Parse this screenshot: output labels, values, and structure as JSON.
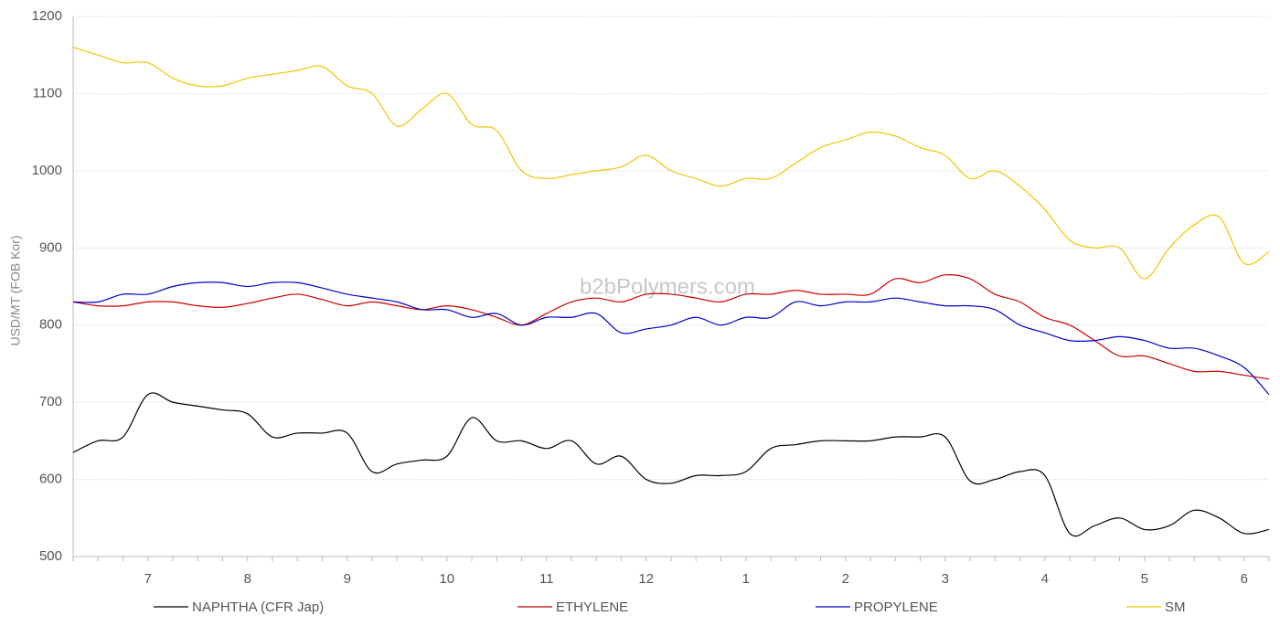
{
  "chart_data": {
    "type": "line",
    "y_label": "USD/MT (FOB Kor)",
    "watermark": "b2bPolymers.com",
    "categories": [
      null,
      null,
      null,
      "7",
      null,
      null,
      null,
      "8",
      null,
      null,
      null,
      "9",
      null,
      null,
      null,
      "10",
      null,
      null,
      null,
      "11",
      null,
      null,
      null,
      "12",
      null,
      null,
      null,
      "1",
      null,
      null,
      null,
      "2",
      null,
      null,
      null,
      "3",
      null,
      null,
      null,
      "4",
      null,
      null,
      null,
      "5",
      null,
      null,
      null,
      "6",
      null
    ],
    "ylim": [
      500,
      1200
    ],
    "yticks": [
      500,
      600,
      700,
      800,
      900,
      1000,
      1100,
      1200
    ],
    "grid": true,
    "legend": "bottom",
    "series": [
      {
        "name": "NAPHTHA (CFR Jap)",
        "color": "#000000",
        "values": [
          635,
          650,
          655,
          710,
          700,
          695,
          690,
          685,
          655,
          660,
          660,
          660,
          610,
          620,
          625,
          630,
          680,
          650,
          650,
          640,
          650,
          620,
          630,
          600,
          595,
          605,
          605,
          610,
          640,
          645,
          650,
          650,
          650,
          655,
          655,
          655,
          598,
          600,
          610,
          605,
          530,
          540,
          550,
          535,
          540,
          560,
          550,
          530,
          535
        ]
      },
      {
        "name": "ETHYLENE",
        "color": "#cc0000",
        "values": [
          830,
          825,
          825,
          830,
          830,
          825,
          823,
          828,
          835,
          840,
          833,
          825,
          830,
          825,
          820,
          825,
          820,
          810,
          800,
          815,
          830,
          835,
          830,
          840,
          840,
          835,
          830,
          840,
          840,
          845,
          840,
          840,
          840,
          860,
          855,
          865,
          860,
          840,
          830,
          810,
          800,
          780,
          760,
          760,
          750,
          740,
          740,
          735,
          730
        ]
      },
      {
        "name": "PROPYLENE",
        "color": "#0000cc",
        "values": [
          830,
          830,
          840,
          840,
          850,
          855,
          855,
          850,
          855,
          855,
          848,
          840,
          835,
          830,
          820,
          820,
          810,
          815,
          800,
          810,
          810,
          815,
          790,
          795,
          800,
          810,
          800,
          810,
          810,
          830,
          825,
          830,
          830,
          835,
          830,
          825,
          825,
          820,
          800,
          790,
          780,
          780,
          785,
          780,
          770,
          770,
          760,
          745,
          710
        ]
      },
      {
        "name": "SM",
        "color": "#f2c500",
        "values": [
          1160,
          1150,
          1140,
          1140,
          1120,
          1110,
          1110,
          1120,
          1125,
          1130,
          1135,
          1110,
          1100,
          1058,
          1080,
          1100,
          1060,
          1052,
          1000,
          990,
          995,
          1000,
          1005,
          1020,
          1000,
          990,
          980,
          990,
          990,
          1010,
          1030,
          1040,
          1050,
          1045,
          1030,
          1020,
          990,
          1000,
          980,
          950,
          910,
          900,
          900,
          860,
          900,
          930,
          940,
          880,
          895
        ]
      }
    ]
  }
}
